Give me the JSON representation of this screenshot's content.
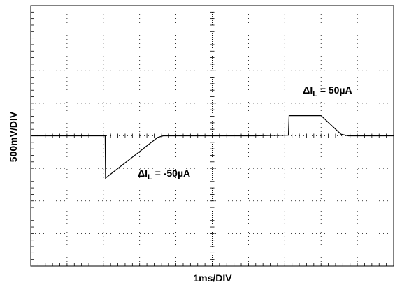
{
  "chart_data": {
    "type": "line",
    "title": "",
    "xlabel": "1ms/DIV",
    "ylabel": "500mV/DIV",
    "grid": true,
    "x_divisions": 10,
    "y_divisions": 8,
    "xlim": [
      0,
      10
    ],
    "ylim": [
      -4,
      4
    ],
    "x_unit_per_div": "1ms",
    "y_unit_per_div": "500mV",
    "series": [
      {
        "points": [
          [
            0,
            0
          ],
          [
            2.05,
            0
          ],
          [
            2.06,
            -1.3
          ],
          [
            3.5,
            -0.05
          ],
          [
            3.65,
            0
          ],
          [
            6.2,
            0
          ],
          [
            7.1,
            0.02
          ],
          [
            7.12,
            0.62
          ],
          [
            8.0,
            0.62
          ],
          [
            8.55,
            0.05
          ],
          [
            8.75,
            0
          ],
          [
            10,
            0
          ]
        ]
      }
    ],
    "annotations": [
      {
        "id": "neg",
        "prefix": "ΔI",
        "sub": "L",
        "suffix": " = -50µA",
        "x": 2.95,
        "y": -1.25
      },
      {
        "id": "pos",
        "prefix": "ΔI",
        "sub": "L",
        "suffix": " = 50µA",
        "x": 7.5,
        "y": 1.3
      }
    ]
  },
  "colors": {
    "trace": "#000000",
    "grid": "#000000",
    "background": "#ffffff"
  }
}
